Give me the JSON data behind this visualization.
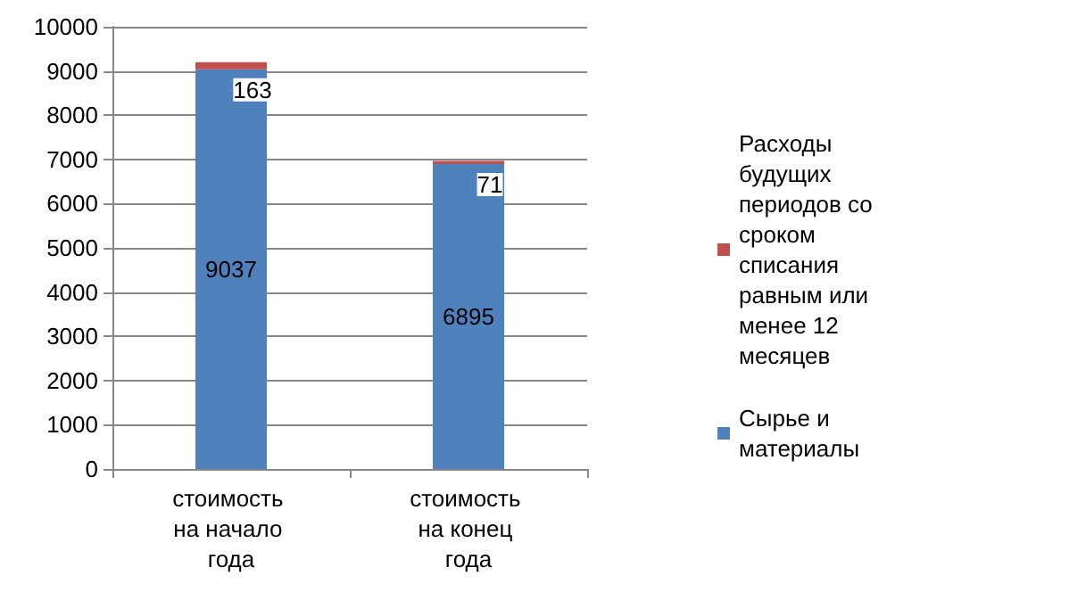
{
  "chart_data": {
    "type": "bar",
    "stacked": true,
    "categories": [
      "стоимость на начало года",
      "стоимость на конец года"
    ],
    "series": [
      {
        "name": "Сырье и материалы",
        "color": "#4f81bd",
        "values": [
          9037,
          6895
        ]
      },
      {
        "name": "Расходы будущих периодов со сроком списания равным или менее 12 месяцев",
        "color": "#c0504d",
        "values": [
          163,
          71
        ]
      }
    ],
    "ylim": [
      0,
      10000
    ],
    "yticks": [
      0,
      1000,
      2000,
      3000,
      4000,
      5000,
      6000,
      7000,
      8000,
      9000,
      10000
    ],
    "grid": "y",
    "legend": "right",
    "data_labels": true
  }
}
